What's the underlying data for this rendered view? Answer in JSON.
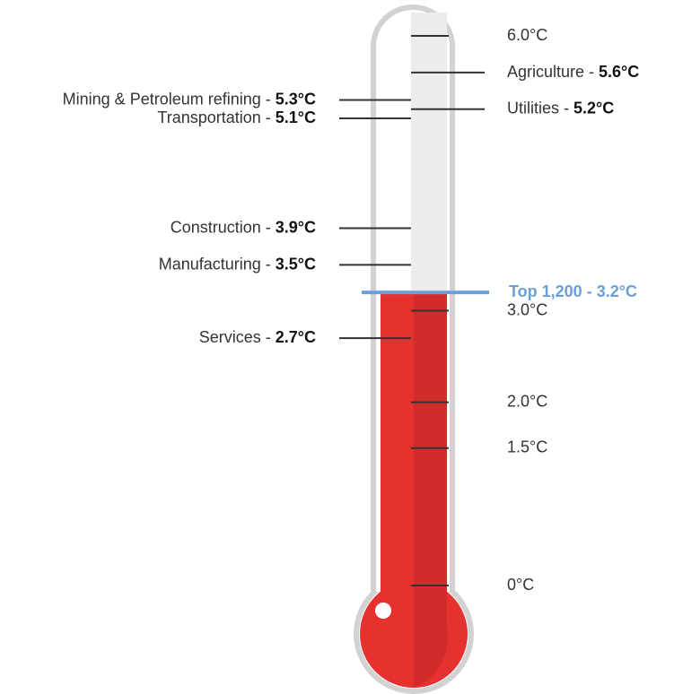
{
  "chart_data": {
    "type": "thermometer",
    "ylim": [
      0,
      6
    ],
    "yticks": [
      {
        "value": 6,
        "label": "6.0°C"
      },
      {
        "value": 3,
        "label": "3.0°C"
      },
      {
        "value": 2,
        "label": "2.0°C"
      },
      {
        "value": 1.5,
        "label": "1.5°C"
      },
      {
        "value": 0,
        "label": "0°C"
      }
    ],
    "categories": [
      "Agriculture -",
      "Mining & Petroleum refining -",
      "Utilities -",
      "Transportation -",
      "Construction -",
      "Manufacturing -",
      "Services -"
    ],
    "values": [
      5.6,
      5.3,
      5.2,
      5.1,
      3.9,
      3.5,
      2.7
    ],
    "value_labels": [
      "5.6°C",
      "5.3°C",
      "5.2°C",
      "5.1°C",
      "3.9°C",
      "3.5°C",
      "2.7°C"
    ],
    "sides": [
      "right",
      "left",
      "right",
      "left",
      "left",
      "left",
      "left"
    ],
    "level": {
      "label": "Top 1,200 -",
      "value": 3.2,
      "value_label": "3.2°C",
      "color": "#6a9fd8"
    },
    "fill_color": "#e5322f",
    "fill_shade": "#d22c2a"
  }
}
